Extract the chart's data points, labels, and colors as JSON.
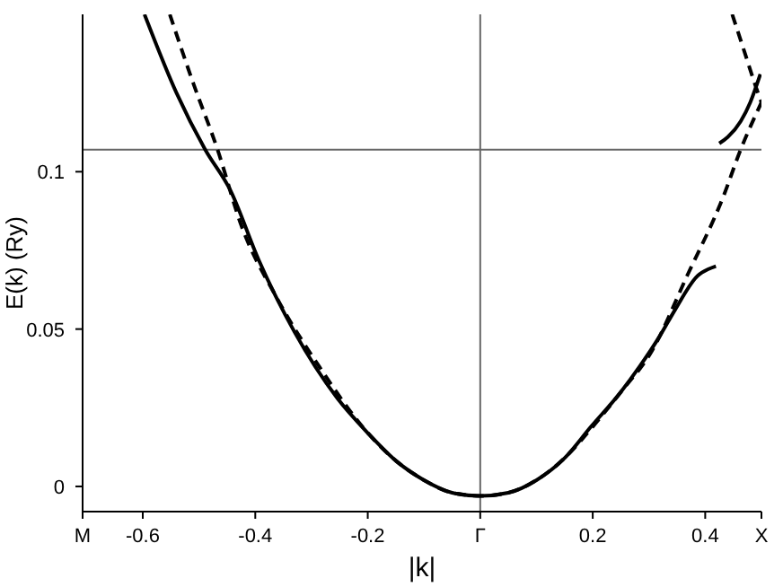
{
  "chart_data": {
    "type": "line",
    "xlabel": "|k|",
    "ylabel": "E(k) (Ry)",
    "xlim": [
      -0.707,
      0.5
    ],
    "ylim": [
      -0.008,
      0.15
    ],
    "xticks": [
      {
        "value": -0.707,
        "label": "M"
      },
      -0.6,
      -0.4,
      -0.2,
      {
        "value": 0,
        "label": "Γ"
      },
      0.2,
      0.4,
      {
        "value": 0.5,
        "label": "X"
      }
    ],
    "yticks": [
      0,
      0.05,
      0.1
    ],
    "grid": false,
    "legend": false,
    "marker": "none",
    "ref_lines": [
      {
        "axis": "y",
        "value": 0.107,
        "color": "#666666"
      },
      {
        "axis": "x",
        "value": 0,
        "color": "#666666"
      }
    ],
    "series": [
      {
        "color": "#000000",
        "line_style": "solid",
        "x": [
          -0.597,
          -0.54,
          -0.489,
          -0.444,
          -0.394,
          -0.33,
          -0.254,
          -0.2,
          -0.149,
          -0.1,
          -0.05,
          0,
          0.05,
          0.1,
          0.15,
          0.197,
          0.25,
          0.283,
          0.32,
          0.346,
          0.387,
          0.405,
          0.419
        ],
        "values": [
          0.15,
          0.125,
          0.107,
          0.094,
          0.072,
          0.049,
          0.028,
          0.017,
          0.008,
          0.002,
          -0.002,
          -0.003,
          -0.002,
          0.002,
          0.009,
          0.019,
          0.03,
          0.038,
          0.048,
          0.056,
          0.067,
          0.069,
          0.07
        ]
      },
      {
        "color": "#000000",
        "line_style": "solid",
        "x": [
          0.425,
          0.44,
          0.463,
          0.48,
          0.498
        ],
        "values": [
          0.109,
          0.111,
          0.116,
          0.122,
          0.131
        ]
      },
      {
        "color": "#000000",
        "line_style": "dashed",
        "x": [
          -0.552,
          -0.51,
          -0.467,
          -0.425,
          -0.362,
          -0.286,
          -0.2,
          -0.149,
          -0.1,
          -0.05,
          0,
          0.05,
          0.1,
          0.15,
          0.2,
          0.25,
          0.305,
          0.368,
          0.432,
          0.463,
          0.5
        ],
        "values": [
          0.15,
          0.128,
          0.107,
          0.083,
          0.06,
          0.038,
          0.017,
          0.008,
          0.002,
          -0.002,
          -0.003,
          -0.002,
          0.002,
          0.009,
          0.019,
          0.03,
          0.043,
          0.067,
          0.092,
          0.107,
          0.122
        ]
      },
      {
        "color": "#000000",
        "line_style": "dashed",
        "x": [
          0.448,
          0.47,
          0.49,
          0.5
        ],
        "values": [
          0.15,
          0.138,
          0.127,
          0.122
        ]
      }
    ]
  }
}
